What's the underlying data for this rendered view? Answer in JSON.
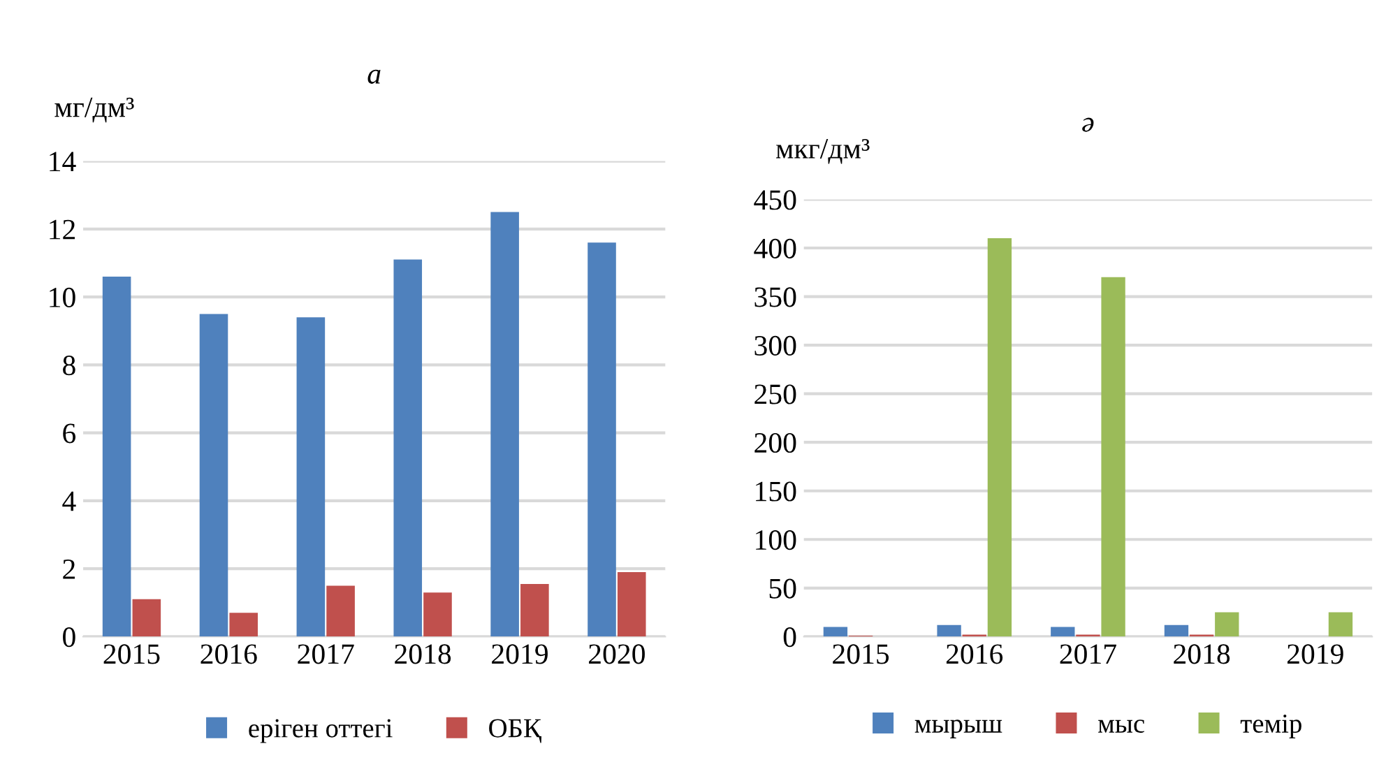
{
  "chart_data": [
    {
      "type": "bar",
      "title": "а",
      "ylabel": "мг/дм³",
      "categories": [
        "2015",
        "2016",
        "2017",
        "2018",
        "2019",
        "2020"
      ],
      "series": [
        {
          "name": "еріген оттегі",
          "color": "#4f81bd",
          "values": [
            10.6,
            9.5,
            9.4,
            11.1,
            12.5,
            11.6
          ]
        },
        {
          "name": "ОБҚ",
          "color": "#c0504d",
          "values": [
            1.1,
            0.7,
            1.5,
            1.3,
            1.55,
            1.9
          ]
        }
      ],
      "ylim": [
        0,
        14
      ],
      "yticks": [
        0,
        2,
        4,
        6,
        8,
        10,
        12,
        14
      ],
      "grid": "y",
      "legend": "bottom"
    },
    {
      "type": "bar",
      "title": "ә",
      "ylabel": "мкг/дм³",
      "categories": [
        "2015",
        "2016",
        "2017",
        "2018",
        "2019"
      ],
      "series": [
        {
          "name": "мырыш",
          "color": "#4f81bd",
          "values": [
            10,
            12,
            10,
            12,
            null
          ]
        },
        {
          "name": "мыс",
          "color": "#c0504d",
          "values": [
            1,
            2,
            2,
            2,
            null
          ]
        },
        {
          "name": "темір",
          "color": "#9bbb59",
          "values": [
            null,
            410,
            370,
            25,
            25
          ]
        }
      ],
      "ylim": [
        0,
        450
      ],
      "yticks": [
        0,
        50,
        100,
        150,
        200,
        250,
        300,
        350,
        400,
        450
      ],
      "grid": "y",
      "legend": "bottom"
    }
  ]
}
